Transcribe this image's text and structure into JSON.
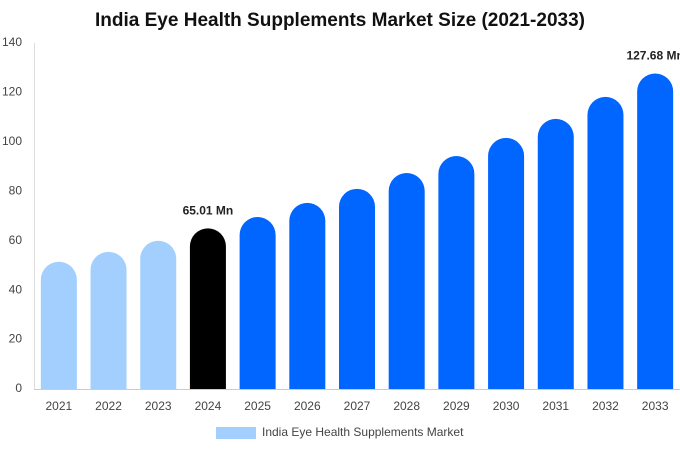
{
  "chart_data": {
    "type": "bar",
    "title": "India Eye Health Supplements Market Size (2021-2033)",
    "categories": [
      "2021",
      "2022",
      "2023",
      "2024",
      "2025",
      "2026",
      "2027",
      "2028",
      "2029",
      "2030",
      "2031",
      "2032",
      "2033"
    ],
    "series": [
      {
        "name": "India Eye Health Supplements Market",
        "color": "#a3cfff",
        "values": [
          51.5,
          55.5,
          60,
          65.01,
          69.6,
          75.3,
          81,
          87.4,
          94.3,
          101.6,
          109.3,
          118.2,
          127.68
        ],
        "colors": [
          "#a3cfff",
          "#a3cfff",
          "#a3cfff",
          "#000000",
          "#0066ff",
          "#0066ff",
          "#0066ff",
          "#0066ff",
          "#0066ff",
          "#0066ff",
          "#0066ff",
          "#0066ff",
          "#0066ff"
        ],
        "value_labels": [
          null,
          null,
          null,
          "65.01 Mn",
          null,
          null,
          null,
          null,
          null,
          null,
          null,
          null,
          "127.68 Mn"
        ]
      }
    ],
    "ylim": [
      0,
      140
    ],
    "yticks": [
      0,
      20,
      40,
      60,
      80,
      100,
      120,
      140
    ],
    "grid": false
  }
}
